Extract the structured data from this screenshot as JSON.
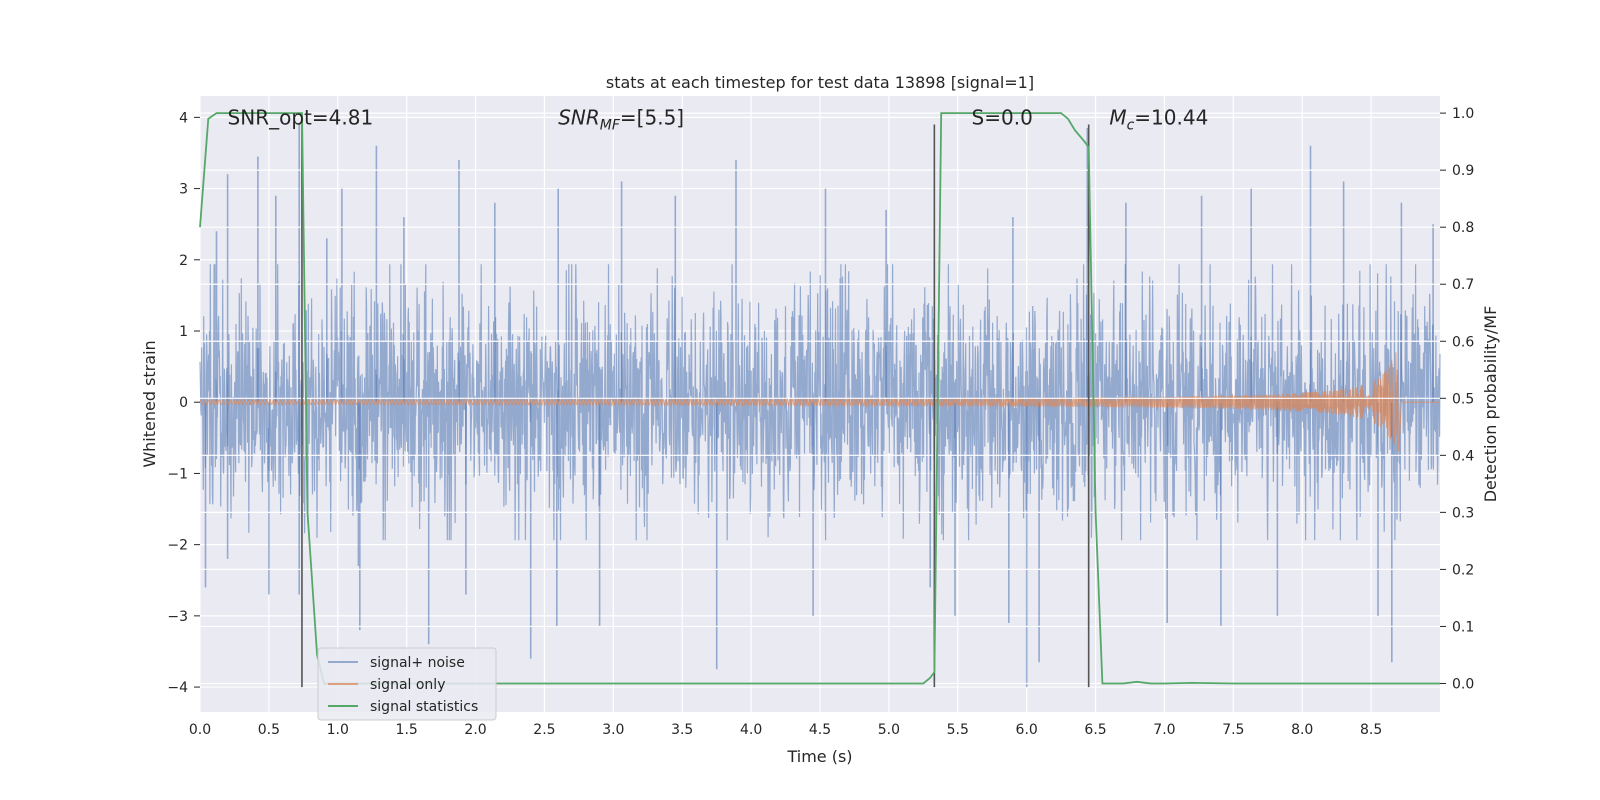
{
  "chart_data": {
    "type": "line",
    "title": "stats at each timestep for test data 13898 [signal=1]",
    "xlabel": "Time (s)",
    "ylabel_left": "Whitened strain",
    "ylabel_right": "Detection probability/MF",
    "xlim": [
      0.0,
      9.0
    ],
    "ylim_left": [
      -4.35,
      4.3
    ],
    "ylim_right": [
      -0.05,
      1.03
    ],
    "x_ticks": [
      "0.0",
      "0.5",
      "1.0",
      "1.5",
      "2.0",
      "2.5",
      "3.0",
      "3.5",
      "4.0",
      "4.5",
      "5.0",
      "5.5",
      "6.0",
      "6.5",
      "7.0",
      "7.5",
      "8.0",
      "8.5"
    ],
    "x_tick_values": [
      0.0,
      0.5,
      1.0,
      1.5,
      2.0,
      2.5,
      3.0,
      3.5,
      4.0,
      4.5,
      5.0,
      5.5,
      6.0,
      6.5,
      7.0,
      7.5,
      8.0,
      8.5
    ],
    "y_left_ticks": [
      "−4",
      "−3",
      "−2",
      "−1",
      "0",
      "1",
      "2",
      "3",
      "4"
    ],
    "y_left_tick_values": [
      -4,
      -3,
      -2,
      -1,
      0,
      1,
      2,
      3,
      4
    ],
    "y_right_ticks": [
      "0.0",
      "0.1",
      "0.2",
      "0.3",
      "0.4",
      "0.5",
      "0.6",
      "0.7",
      "0.8",
      "0.9",
      "1.0"
    ],
    "y_right_tick_values": [
      0.0,
      0.1,
      0.2,
      0.3,
      0.4,
      0.5,
      0.6,
      0.7,
      0.8,
      0.9,
      1.0
    ],
    "grid": true,
    "annotations": [
      {
        "text": "SNR_opt=4.81",
        "x": 0.2,
        "y": 4.0
      },
      {
        "text": "SNR_MF=[5.5]",
        "x": 2.6,
        "y": 4.0
      },
      {
        "text": "S=0.0",
        "x": 5.6,
        "y": 4.0
      },
      {
        "text": "M_c=10.44",
        "x": 6.6,
        "y": 4.0
      }
    ],
    "vertical_lines": [
      0.74,
      5.33,
      6.45
    ],
    "vline_range": [
      -4.0,
      3.9
    ],
    "series": [
      {
        "name": "signal+ noise",
        "color": "#4c72b0",
        "axis": "left",
        "kind": "noise",
        "t_range": [
          0.0,
          9.0
        ],
        "typical_envelope": 1.55,
        "spike_peaks": [
          [
            0.12,
            2.4
          ],
          [
            0.2,
            3.2
          ],
          [
            0.42,
            3.45
          ],
          [
            0.55,
            2.9
          ],
          [
            0.72,
            3.9
          ],
          [
            0.92,
            2.3
          ],
          [
            1.03,
            3.0
          ],
          [
            1.28,
            3.6
          ],
          [
            1.48,
            2.6
          ],
          [
            1.88,
            3.4
          ],
          [
            2.14,
            2.8
          ],
          [
            2.6,
            3.0
          ],
          [
            3.06,
            3.1
          ],
          [
            3.45,
            2.9
          ],
          [
            3.89,
            3.4
          ],
          [
            4.54,
            3.0
          ],
          [
            4.98,
            2.7
          ],
          [
            5.9,
            2.6
          ],
          [
            6.44,
            3.85
          ],
          [
            6.72,
            2.8
          ],
          [
            7.27,
            2.9
          ],
          [
            7.63,
            3.0
          ],
          [
            8.06,
            3.6
          ],
          [
            8.3,
            3.1
          ],
          [
            8.72,
            2.8
          ],
          [
            8.95,
            2.5
          ]
        ],
        "spike_troughs": [
          [
            0.04,
            -2.6
          ],
          [
            0.2,
            -2.2
          ],
          [
            0.5,
            -2.7
          ],
          [
            0.72,
            -2.7
          ],
          [
            1.15,
            -2.3
          ],
          [
            1.16,
            -3.2
          ],
          [
            1.66,
            -3.4
          ],
          [
            1.93,
            -2.7
          ],
          [
            2.4,
            -3.6
          ],
          [
            2.59,
            -3.15
          ],
          [
            2.9,
            -3.15
          ],
          [
            3.75,
            -3.75
          ],
          [
            4.45,
            -3.0
          ],
          [
            5.3,
            -2.6
          ],
          [
            5.48,
            -3.0
          ],
          [
            5.87,
            -3.1
          ],
          [
            6.0,
            -4.0
          ],
          [
            6.09,
            -3.65
          ],
          [
            6.45,
            -3.2
          ],
          [
            7.02,
            -3.1
          ],
          [
            7.41,
            -3.15
          ],
          [
            7.82,
            -3.0
          ],
          [
            8.55,
            -3.0
          ],
          [
            8.65,
            -3.65
          ]
        ]
      },
      {
        "name": "signal only",
        "color": "#dd8452",
        "axis": "left",
        "kind": "chirp",
        "t_start": 0.0,
        "t_end": 8.7,
        "amplitude_at_start": 0.03,
        "amplitude_peak": 0.7
      },
      {
        "name": "signal statistics",
        "color": "#55a868",
        "axis": "right",
        "kind": "line",
        "x": [
          0.0,
          0.06,
          0.12,
          0.2,
          0.3,
          0.45,
          0.6,
          0.7,
          0.74,
          0.78,
          0.85,
          0.9,
          1.0,
          2.0,
          3.0,
          4.0,
          5.0,
          5.25,
          5.3,
          5.33,
          5.38,
          5.5,
          6.0,
          6.25,
          6.3,
          6.35,
          6.42,
          6.45,
          6.5,
          6.55,
          6.7,
          6.8,
          6.9,
          7.0,
          7.2,
          7.5,
          8.0,
          8.5,
          9.0
        ],
        "y": [
          0.8,
          0.99,
          1.0,
          1.0,
          1.0,
          1.0,
          1.0,
          1.0,
          1.0,
          0.3,
          0.05,
          0.0,
          0.0,
          0.0,
          0.0,
          0.0,
          0.0,
          0.0,
          0.01,
          0.02,
          1.0,
          1.0,
          1.0,
          1.0,
          0.99,
          0.97,
          0.95,
          0.94,
          0.3,
          0.0,
          0.0,
          0.003,
          0.0,
          0.0,
          0.001,
          0.0,
          0.0,
          0.0,
          0.0
        ]
      }
    ],
    "legend": {
      "placement": "lower-left",
      "entries": [
        "signal+ noise",
        "signal only",
        "signal statistics"
      ]
    }
  }
}
